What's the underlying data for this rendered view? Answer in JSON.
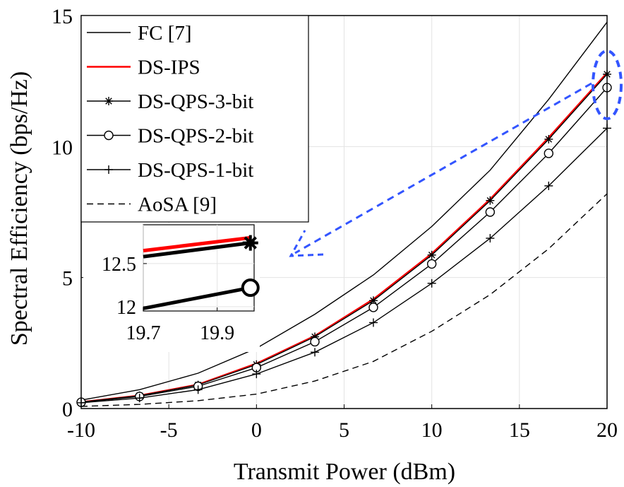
{
  "chart_data": {
    "type": "line",
    "xlabel": "Transmit Power (dBm)",
    "ylabel": "Spectral Efficiency (bps/Hz)",
    "xlim": [
      -10,
      20
    ],
    "ylim": [
      0,
      15
    ],
    "xticks": [
      "-10",
      "-5",
      "0",
      "5",
      "10",
      "15",
      "20"
    ],
    "yticks": [
      "0",
      "5",
      "10",
      "15"
    ],
    "grid": true,
    "legend_position": "top-left",
    "x": [
      -10,
      -6.67,
      -3.33,
      0,
      3.33,
      6.67,
      10,
      13.33,
      16.67,
      20
    ],
    "series": [
      {
        "name": "FC [7]",
        "color": "#000000",
        "style": "solid",
        "marker": "none",
        "values": [
          0.32,
          0.72,
          1.35,
          2.3,
          3.6,
          5.1,
          6.95,
          9.1,
          11.8,
          14.75
        ]
      },
      {
        "name": "DS-IPS",
        "color": "#ff0000",
        "style": "solid",
        "marker": "none",
        "values": [
          0.25,
          0.5,
          0.92,
          1.72,
          2.78,
          4.18,
          5.92,
          8.0,
          10.35,
          12.82
        ]
      },
      {
        "name": "DS-QPS-3-bit",
        "color": "#000000",
        "style": "solid",
        "marker": "asterisk",
        "values": [
          0.25,
          0.49,
          0.9,
          1.68,
          2.74,
          4.12,
          5.86,
          7.94,
          10.28,
          12.76
        ]
      },
      {
        "name": "DS-QPS-2-bit",
        "color": "#000000",
        "style": "solid",
        "marker": "circle",
        "values": [
          0.24,
          0.46,
          0.85,
          1.56,
          2.55,
          3.86,
          5.52,
          7.5,
          9.74,
          12.25
        ]
      },
      {
        "name": "DS-QPS-1-bit",
        "color": "#000000",
        "style": "solid",
        "marker": "plus",
        "values": [
          0.22,
          0.4,
          0.72,
          1.32,
          2.15,
          3.28,
          4.78,
          6.5,
          8.5,
          10.7
        ]
      },
      {
        "name": "AoSA [9]",
        "color": "#000000",
        "style": "dashed",
        "marker": "none",
        "values": [
          0.08,
          0.16,
          0.3,
          0.55,
          1.05,
          1.8,
          2.95,
          4.35,
          6.1,
          8.2
        ]
      }
    ],
    "inset": {
      "xlim": [
        19.7,
        20.0
      ],
      "ylim": [
        11.95,
        12.95
      ],
      "xticks": [
        "19.7",
        "19.9"
      ],
      "yticks": [
        "12",
        "12.5"
      ],
      "series": [
        {
          "name": "DS-IPS",
          "color": "#ff0000",
          "x": [
            19.7,
            19.99
          ],
          "values": [
            12.65,
            12.8
          ]
        },
        {
          "name": "DS-QPS-3-bit",
          "color": "#000000",
          "x": [
            19.7,
            19.99
          ],
          "values": [
            12.58,
            12.74
          ],
          "marker": "asterisk"
        },
        {
          "name": "DS-QPS-2-bit",
          "color": "#000000",
          "x": [
            19.7,
            19.99
          ],
          "values": [
            11.98,
            12.22
          ],
          "marker": "circle"
        }
      ]
    },
    "annotation": {
      "type": "dashed ellipse with arrow to inset",
      "color": "#3355ff"
    }
  }
}
